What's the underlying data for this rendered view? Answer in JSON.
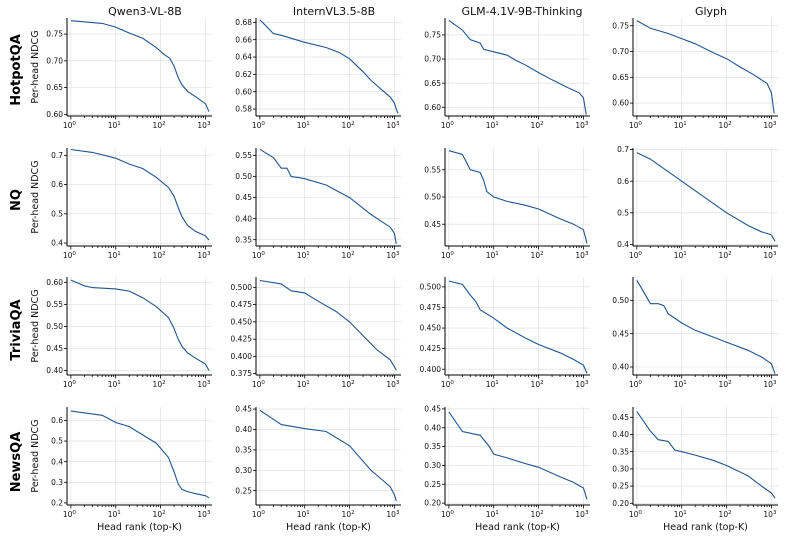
{
  "columns": [
    "Qwen3-VL-8B",
    "InternVL3.5-8B",
    "GLM-4.1V-9B-Thinking",
    "Glyph"
  ],
  "rows": [
    "HotpotQA",
    "NQ",
    "TriviaQA",
    "NewsQA"
  ],
  "ylabel": "Per-head NDCG",
  "xlabel": "Head rank (top-K)",
  "colors": {
    "line": "#1f5591",
    "grid": "#dcdcdc",
    "axis": "#000000"
  },
  "chart_data": [
    {
      "type": "line",
      "dataset": "HotpotQA",
      "model": "Qwen3-VL-8B",
      "x_scale": "log",
      "x_ticks": [
        "10^0",
        "10^1",
        "10^2",
        "10^3"
      ],
      "ylim": [
        0.597,
        0.78
      ],
      "yticks": [
        "0.60",
        "0.65",
        "0.70",
        "0.75"
      ],
      "x": [
        1,
        5,
        10,
        20,
        40,
        80,
        120,
        160,
        200,
        250,
        300,
        400,
        600,
        1000,
        1200
      ],
      "y": [
        0.775,
        0.77,
        0.763,
        0.752,
        0.742,
        0.725,
        0.712,
        0.705,
        0.69,
        0.668,
        0.655,
        0.643,
        0.633,
        0.62,
        0.605
      ]
    },
    {
      "type": "line",
      "dataset": "HotpotQA",
      "model": "InternVL3.5-8B",
      "x_scale": "log",
      "x_ticks": [
        "10^0",
        "10^1",
        "10^2",
        "10^3"
      ],
      "ylim": [
        0.572,
        0.685
      ],
      "yticks": [
        "0.58",
        "0.60",
        "0.62",
        "0.64",
        "0.66",
        "0.68"
      ],
      "x": [
        1,
        2,
        3,
        10,
        30,
        60,
        100,
        200,
        300,
        500,
        800,
        1000,
        1100,
        1200
      ],
      "y": [
        0.683,
        0.667,
        0.665,
        0.657,
        0.651,
        0.645,
        0.638,
        0.623,
        0.613,
        0.603,
        0.594,
        0.587,
        0.58,
        0.575
      ]
    },
    {
      "type": "line",
      "dataset": "HotpotQA",
      "model": "GLM-4.1V-9B-Thinking",
      "x_scale": "log",
      "x_ticks": [
        "10^0",
        "10^1",
        "10^2",
        "10^3"
      ],
      "ylim": [
        0.582,
        0.785
      ],
      "yticks": [
        "0.60",
        "0.65",
        "0.70",
        "0.75"
      ],
      "x": [
        1,
        2,
        3,
        5,
        6,
        10,
        20,
        30,
        50,
        100,
        200,
        400,
        800,
        1000,
        1150
      ],
      "y": [
        0.78,
        0.76,
        0.74,
        0.733,
        0.72,
        0.715,
        0.708,
        0.698,
        0.688,
        0.672,
        0.657,
        0.643,
        0.63,
        0.62,
        0.585
      ]
    },
    {
      "type": "line",
      "dataset": "HotpotQA",
      "model": "Glyph",
      "x_scale": "log",
      "x_ticks": [
        "10^0",
        "10^1",
        "10^2",
        "10^3"
      ],
      "ylim": [
        0.575,
        0.765
      ],
      "yticks": [
        "0.60",
        "0.65",
        "0.70",
        "0.75"
      ],
      "x": [
        1,
        2,
        5,
        10,
        20,
        50,
        100,
        200,
        400,
        800,
        1000,
        1150
      ],
      "y": [
        0.76,
        0.745,
        0.735,
        0.725,
        0.715,
        0.698,
        0.686,
        0.67,
        0.655,
        0.638,
        0.62,
        0.58
      ]
    },
    {
      "type": "line",
      "dataset": "NQ",
      "model": "Qwen3-VL-8B",
      "x_scale": "log",
      "x_ticks": [
        "10^0",
        "10^1",
        "10^2",
        "10^3"
      ],
      "ylim": [
        0.39,
        0.725
      ],
      "yticks": [
        "0.4",
        "0.5",
        "0.6",
        "0.7"
      ],
      "x": [
        1,
        3,
        10,
        20,
        40,
        80,
        150,
        200,
        250,
        300,
        400,
        600,
        1000,
        1200
      ],
      "y": [
        0.72,
        0.71,
        0.69,
        0.67,
        0.655,
        0.625,
        0.59,
        0.56,
        0.52,
        0.49,
        0.46,
        0.44,
        0.425,
        0.41
      ]
    },
    {
      "type": "line",
      "dataset": "NQ",
      "model": "InternVL3.5-8B",
      "x_scale": "log",
      "x_ticks": [
        "10^0",
        "10^1",
        "10^2",
        "10^3"
      ],
      "ylim": [
        0.335,
        0.568
      ],
      "yticks": [
        "0.35",
        "0.40",
        "0.45",
        "0.50",
        "0.55"
      ],
      "x": [
        1,
        2,
        3,
        4,
        5,
        7,
        10,
        30,
        100,
        300,
        800,
        1000,
        1100
      ],
      "y": [
        0.565,
        0.545,
        0.52,
        0.52,
        0.5,
        0.498,
        0.495,
        0.48,
        0.45,
        0.41,
        0.38,
        0.365,
        0.34
      ]
    },
    {
      "type": "line",
      "dataset": "NQ",
      "model": "GLM-4.1V-9B-Thinking",
      "x_scale": "log",
      "x_ticks": [
        "10^0",
        "10^1",
        "10^2",
        "10^3"
      ],
      "ylim": [
        0.41,
        0.59
      ],
      "yticks": [
        "0.45",
        "0.50",
        "0.55"
      ],
      "x": [
        1,
        2,
        3,
        5,
        6,
        7,
        10,
        20,
        50,
        100,
        300,
        600,
        1000,
        1200
      ],
      "y": [
        0.585,
        0.578,
        0.55,
        0.545,
        0.53,
        0.51,
        0.5,
        0.492,
        0.485,
        0.478,
        0.46,
        0.45,
        0.44,
        0.415
      ]
    },
    {
      "type": "line",
      "dataset": "NQ",
      "model": "Glyph",
      "x_scale": "log",
      "x_ticks": [
        "10^0",
        "10^1",
        "10^2",
        "10^3"
      ],
      "ylim": [
        0.395,
        0.705
      ],
      "yticks": [
        "0.4",
        "0.5",
        "0.6",
        "0.7"
      ],
      "x": [
        1,
        2,
        5,
        10,
        20,
        50,
        100,
        300,
        600,
        1000,
        1200
      ],
      "y": [
        0.69,
        0.67,
        0.63,
        0.6,
        0.57,
        0.53,
        0.5,
        0.46,
        0.44,
        0.43,
        0.41
      ]
    },
    {
      "type": "line",
      "dataset": "TriviaQA",
      "model": "Qwen3-VL-8B",
      "x_scale": "log",
      "x_ticks": [
        "10^0",
        "10^1",
        "10^2",
        "10^3"
      ],
      "ylim": [
        0.39,
        0.612
      ],
      "yticks": [
        "0.40",
        "0.45",
        "0.50",
        "0.55",
        "0.60"
      ],
      "x": [
        1,
        2,
        3,
        10,
        20,
        40,
        80,
        150,
        200,
        250,
        300,
        400,
        600,
        1000,
        1200
      ],
      "y": [
        0.605,
        0.592,
        0.588,
        0.585,
        0.58,
        0.565,
        0.545,
        0.52,
        0.495,
        0.47,
        0.455,
        0.44,
        0.428,
        0.415,
        0.4
      ]
    },
    {
      "type": "line",
      "dataset": "TriviaQA",
      "model": "InternVL3.5-8B",
      "x_scale": "log",
      "x_ticks": [
        "10^0",
        "10^1",
        "10^2",
        "10^3"
      ],
      "ylim": [
        0.373,
        0.515
      ],
      "yticks": [
        "0.375",
        "0.400",
        "0.425",
        "0.450",
        "0.475",
        "0.500"
      ],
      "x": [
        1,
        3,
        5,
        10,
        20,
        50,
        100,
        200,
        400,
        800,
        1000,
        1100
      ],
      "y": [
        0.51,
        0.505,
        0.495,
        0.492,
        0.48,
        0.465,
        0.45,
        0.43,
        0.41,
        0.395,
        0.385,
        0.38
      ]
    },
    {
      "type": "line",
      "dataset": "TriviaQA",
      "model": "GLM-4.1V-9B-Thinking",
      "x_scale": "log",
      "x_ticks": [
        "10^0",
        "10^1",
        "10^2",
        "10^3"
      ],
      "ylim": [
        0.393,
        0.512
      ],
      "yticks": [
        "0.400",
        "0.425",
        "0.450",
        "0.475",
        "0.500"
      ],
      "x": [
        1,
        2,
        3,
        4,
        5,
        10,
        20,
        50,
        100,
        300,
        600,
        1000,
        1200
      ],
      "y": [
        0.507,
        0.503,
        0.49,
        0.482,
        0.472,
        0.462,
        0.45,
        0.438,
        0.43,
        0.42,
        0.412,
        0.405,
        0.395
      ]
    },
    {
      "type": "line",
      "dataset": "TriviaQA",
      "model": "Glyph",
      "x_scale": "log",
      "x_ticks": [
        "10^0",
        "10^1",
        "10^2",
        "10^3"
      ],
      "ylim": [
        0.388,
        0.535
      ],
      "yticks": [
        "0.40",
        "0.45",
        "0.50"
      ],
      "x": [
        1,
        2,
        3,
        4,
        5,
        10,
        20,
        50,
        100,
        300,
        600,
        1000,
        1200
      ],
      "y": [
        0.53,
        0.495,
        0.495,
        0.492,
        0.48,
        0.466,
        0.455,
        0.445,
        0.437,
        0.425,
        0.415,
        0.405,
        0.39
      ]
    },
    {
      "type": "line",
      "dataset": "NewsQA",
      "model": "Qwen3-VL-8B",
      "x_scale": "log",
      "x_ticks": [
        "10^0",
        "10^1",
        "10^2",
        "10^3"
      ],
      "ylim": [
        0.19,
        0.665
      ],
      "yticks": [
        "0.2",
        "0.3",
        "0.4",
        "0.5",
        "0.6"
      ],
      "x": [
        1,
        5,
        10,
        20,
        40,
        80,
        150,
        200,
        250,
        300,
        400,
        600,
        1000,
        1200
      ],
      "y": [
        0.645,
        0.625,
        0.59,
        0.57,
        0.53,
        0.49,
        0.42,
        0.35,
        0.29,
        0.265,
        0.255,
        0.245,
        0.235,
        0.225
      ]
    },
    {
      "type": "line",
      "dataset": "NewsQA",
      "model": "InternVL3.5-8B",
      "x_scale": "log",
      "x_ticks": [
        "10^0",
        "10^1",
        "10^2",
        "10^3"
      ],
      "ylim": [
        0.215,
        0.455
      ],
      "yticks": [
        "0.25",
        "0.30",
        "0.35",
        "0.40",
        "0.45"
      ],
      "x": [
        1,
        3,
        10,
        30,
        100,
        300,
        800,
        1000,
        1100
      ],
      "y": [
        0.447,
        0.412,
        0.402,
        0.395,
        0.36,
        0.3,
        0.26,
        0.24,
        0.225
      ]
    },
    {
      "type": "line",
      "dataset": "NewsQA",
      "model": "GLM-4.1V-9B-Thinking",
      "x_scale": "log",
      "x_ticks": [
        "10^0",
        "10^1",
        "10^2",
        "10^3"
      ],
      "ylim": [
        0.195,
        0.455
      ],
      "yticks": [
        "0.20",
        "0.25",
        "0.30",
        "0.35",
        "0.40",
        "0.45"
      ],
      "x": [
        1,
        2,
        5,
        8,
        10,
        20,
        50,
        100,
        300,
        600,
        1000,
        1200
      ],
      "y": [
        0.442,
        0.39,
        0.38,
        0.35,
        0.33,
        0.32,
        0.305,
        0.295,
        0.27,
        0.255,
        0.24,
        0.21
      ]
    },
    {
      "type": "line",
      "dataset": "NewsQA",
      "model": "Glyph",
      "x_scale": "log",
      "x_ticks": [
        "10^0",
        "10^1",
        "10^2",
        "10^3"
      ],
      "ylim": [
        0.195,
        0.48
      ],
      "yticks": [
        "0.20",
        "0.25",
        "0.30",
        "0.35",
        "0.40",
        "0.45"
      ],
      "x": [
        1,
        2,
        3,
        5,
        7,
        10,
        20,
        50,
        100,
        300,
        600,
        1000,
        1200
      ],
      "y": [
        0.467,
        0.41,
        0.385,
        0.38,
        0.355,
        0.35,
        0.34,
        0.325,
        0.31,
        0.28,
        0.25,
        0.23,
        0.215
      ]
    }
  ]
}
